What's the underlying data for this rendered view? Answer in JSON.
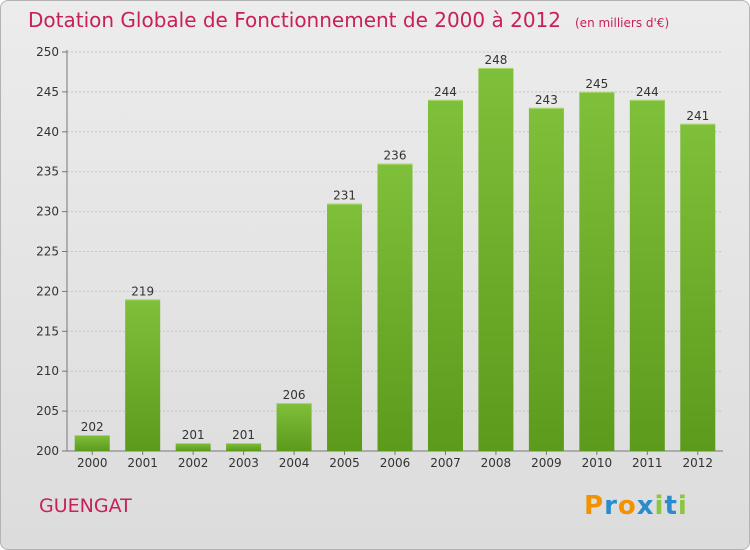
{
  "chart_data": {
    "type": "bar",
    "title": "Dotation Globale de Fonctionnement de 2000 à 2012",
    "subtitle": "(en milliers d'€)",
    "categories": [
      "2000",
      "2001",
      "2002",
      "2003",
      "2004",
      "2005",
      "2006",
      "2007",
      "2008",
      "2009",
      "2010",
      "2011",
      "2012"
    ],
    "values": [
      202,
      219,
      201,
      201,
      206,
      231,
      236,
      244,
      248,
      243,
      245,
      244,
      241
    ],
    "ylim": [
      200,
      250
    ],
    "yticks": [
      200,
      205,
      210,
      215,
      220,
      225,
      230,
      235,
      240,
      245,
      250
    ],
    "grid": true,
    "bar_color": "#7fc03a",
    "bar_color_dark": "#5c9a1c"
  },
  "place_name": "GUENGAT",
  "logo": {
    "text": "Proxiti",
    "letters": [
      {
        "ch": "P",
        "color": "#f39200"
      },
      {
        "ch": "r",
        "color": "#2b8ccd"
      },
      {
        "ch": "o",
        "color": "#f39200"
      },
      {
        "ch": "x",
        "color": "#2b8ccd"
      },
      {
        "ch": "i",
        "color": "#8cc63f"
      },
      {
        "ch": "t",
        "color": "#2b8ccd"
      },
      {
        "ch": "i",
        "color": "#8cc63f"
      }
    ]
  },
  "colors": {
    "accent": "#c8205a"
  }
}
